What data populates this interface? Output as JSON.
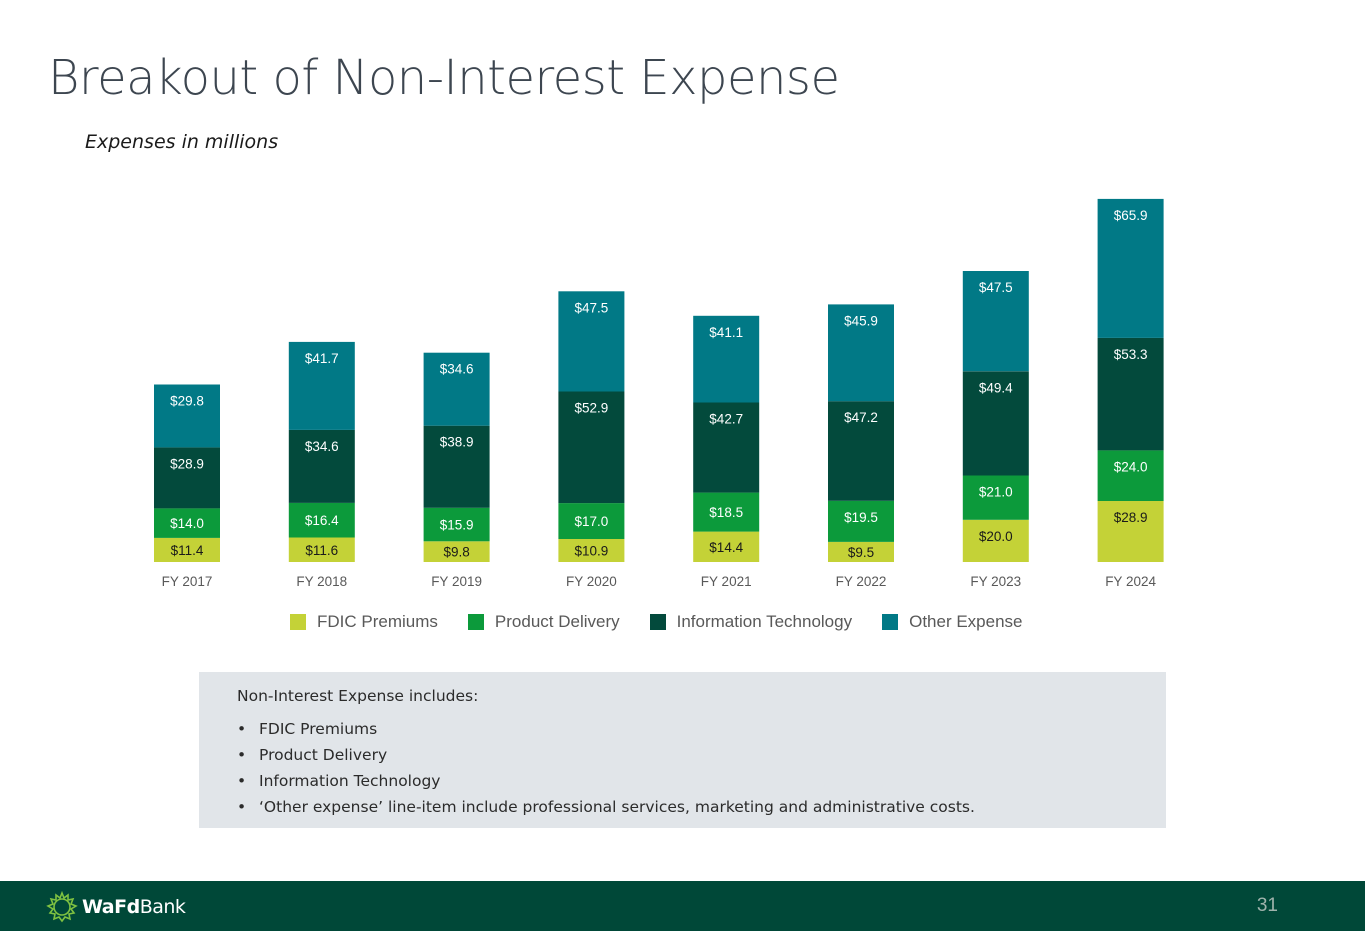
{
  "slide": {
    "title": "Breakout of Non-Interest Expense",
    "subtitle": "Expenses in millions",
    "page_number": "31"
  },
  "colors": {
    "fdic": "#c4d237",
    "product": "#0c9a3b",
    "it": "#034a3c",
    "other": "#017986",
    "footer": "#004838",
    "notes_bg": "#e1e5e9"
  },
  "chart_data": {
    "type": "bar",
    "stacked": true,
    "title": "Breakout of Non-Interest Expense",
    "ylabel": "Expenses in millions",
    "categories": [
      "FY 2017",
      "FY 2018",
      "FY 2019",
      "FY 2020",
      "FY 2021",
      "FY 2022",
      "FY 2023",
      "FY 2024"
    ],
    "series": [
      {
        "name": "FDIC Premiums",
        "color": "#c4d237",
        "values": [
          11.4,
          11.6,
          9.8,
          10.9,
          14.4,
          9.5,
          20.0,
          28.9
        ],
        "labels": [
          "$11.4",
          "$11.6",
          "$9.8",
          "$10.9",
          "$14.4",
          "$9.5",
          "$20.0",
          "$28.9"
        ]
      },
      {
        "name": "Product Delivery",
        "color": "#0c9a3b",
        "values": [
          14.0,
          16.4,
          15.9,
          17.0,
          18.5,
          19.5,
          21.0,
          24.0
        ],
        "labels": [
          "$14.0",
          "$16.4",
          "$15.9",
          "$17.0",
          "$18.5",
          "$19.5",
          "$21.0",
          "$24.0"
        ]
      },
      {
        "name": "Information Technology",
        "color": "#034a3c",
        "values": [
          28.9,
          34.6,
          38.9,
          52.9,
          42.7,
          47.2,
          49.4,
          53.3
        ],
        "labels": [
          "$28.9",
          "$34.6",
          "$38.9",
          "$52.9",
          "$42.7",
          "$47.2",
          "$49.4",
          "$53.3"
        ]
      },
      {
        "name": "Other Expense",
        "color": "#017986",
        "values": [
          29.8,
          41.7,
          34.6,
          47.5,
          41.1,
          45.9,
          47.5,
          65.9
        ],
        "labels": [
          "$29.8",
          "$41.7",
          "$34.6",
          "$47.5",
          "$41.1",
          "$45.9",
          "$47.5",
          "$65.9"
        ]
      }
    ],
    "legend_position": "bottom",
    "grid": false
  },
  "notes": {
    "heading": "Non-Interest Expense includes:",
    "bullet": "•",
    "items": [
      "FDIC Premiums",
      "Product Delivery",
      "Information Technology",
      "‘Other expense’ line-item include professional services, marketing and administrative costs."
    ]
  },
  "footer": {
    "logo_bold": "WaFd",
    "logo_light": "Bank",
    "logo_icon": "wafd-sun-icon"
  }
}
